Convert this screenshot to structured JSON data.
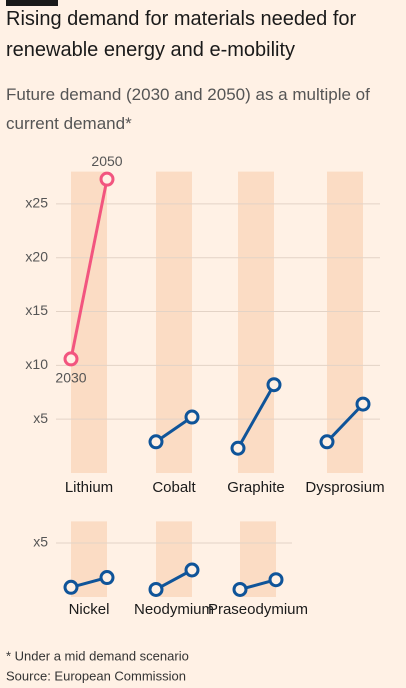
{
  "title": "Rising demand for materials needed for renewable energy and e-mobility",
  "subtitle": "Future demand (2030 and 2050) as a multiple of current demand*",
  "footnote": "* Under a mid demand scenario",
  "source": "Source: European Commission",
  "chart_data": [
    {
      "type": "slope",
      "categories": [
        "Lithium",
        "Cobalt",
        "Graphite",
        "Dysprosium"
      ],
      "series": [
        {
          "name": "2030",
          "values": [
            10.6,
            2.9,
            2.3,
            2.9
          ]
        },
        {
          "name": "2050",
          "values": [
            27.3,
            5.2,
            8.2,
            6.4
          ]
        }
      ],
      "colors": [
        "#f2557f",
        "#0f5499",
        "#0f5499",
        "#0f5499"
      ],
      "ylim": [
        0,
        28
      ],
      "yticks": [
        {
          "value": 5,
          "label": "x5"
        },
        {
          "value": 10,
          "label": "x10"
        },
        {
          "value": 15,
          "label": "x15"
        },
        {
          "value": 20,
          "label": "x20"
        },
        {
          "value": 25,
          "label": "x25"
        }
      ],
      "grid": true
    },
    {
      "type": "slope",
      "categories": [
        "Nickel",
        "Neodymium",
        "Praseodymium"
      ],
      "series": [
        {
          "values": [
            0.9,
            0.7,
            0.7
          ]
        },
        {
          "values": [
            1.8,
            2.5,
            1.6
          ]
        }
      ],
      "colors": [
        "#0f5499",
        "#0f5499",
        "#0f5499"
      ],
      "ylim": [
        0,
        7
      ],
      "yticks": [
        {
          "value": 5,
          "label": "x5"
        }
      ],
      "grid": true
    }
  ]
}
